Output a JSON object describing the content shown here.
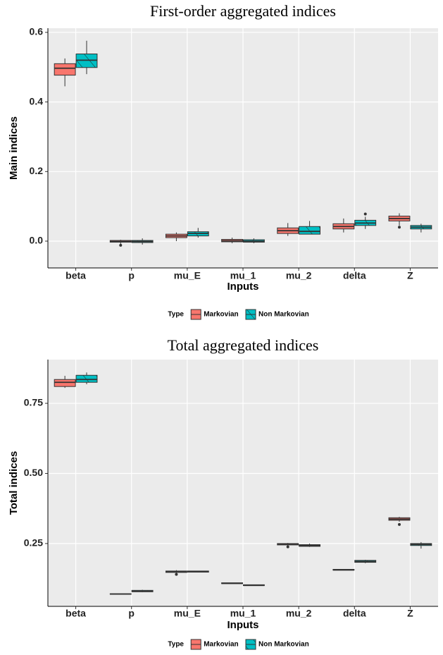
{
  "chart_data": [
    {
      "type": "boxplot",
      "title": "First-order aggregated indices",
      "x_label": "Inputs",
      "y_label": "Main indices",
      "legend_title": "Type",
      "legend": "bottom",
      "grid": true,
      "categories": [
        "beta",
        "p",
        "mu_E",
        "mu_1",
        "mu_2",
        "delta",
        "Z"
      ],
      "ylim": [
        -0.077,
        0.612
      ],
      "yticks": [
        {
          "value": 0,
          "label": "0.0"
        },
        0.2,
        0.4,
        0.6
      ],
      "series": [
        {
          "name": "Markovian",
          "color": "#F8766D",
          "hatch": false,
          "values": [
            {
              "low": 0.445,
              "q1": 0.477,
              "median": 0.497,
              "q3": 0.51,
              "high": 0.525
            },
            {
              "low": -0.008,
              "q1": -0.003,
              "median": -0.001,
              "q3": 0.002,
              "high": 0.004,
              "outliers": [
                -0.012
              ]
            },
            {
              "low": 0.0,
              "q1": 0.01,
              "median": 0.015,
              "q3": 0.02,
              "high": 0.025
            },
            {
              "low": -0.006,
              "q1": -0.002,
              "median": 0.001,
              "q3": 0.005,
              "high": 0.01
            },
            {
              "low": 0.015,
              "q1": 0.022,
              "median": 0.03,
              "q3": 0.038,
              "high": 0.052
            },
            {
              "low": 0.025,
              "q1": 0.035,
              "median": 0.042,
              "q3": 0.05,
              "high": 0.065
            },
            {
              "low": 0.045,
              "q1": 0.058,
              "median": 0.065,
              "q3": 0.072,
              "high": 0.08,
              "outliers": [
                0.04
              ]
            }
          ]
        },
        {
          "name": "Non Markovian",
          "color": "#00BFC4",
          "hatch": true,
          "values": [
            {
              "low": 0.48,
              "q1": 0.499,
              "median": 0.52,
              "q3": 0.538,
              "high": 0.576
            },
            {
              "low": -0.01,
              "q1": -0.004,
              "median": -0.001,
              "q3": 0.002,
              "high": 0.008
            },
            {
              "low": 0.01,
              "q1": 0.015,
              "median": 0.022,
              "q3": 0.027,
              "high": 0.038
            },
            {
              "low": -0.006,
              "q1": -0.003,
              "median": 0.0,
              "q3": 0.004,
              "high": 0.008
            },
            {
              "low": 0.02,
              "q1": 0.02,
              "median": 0.028,
              "q3": 0.042,
              "high": 0.058
            },
            {
              "low": 0.035,
              "q1": 0.045,
              "median": 0.052,
              "q3": 0.06,
              "high": 0.07,
              "outliers": [
                0.078
              ]
            },
            {
              "low": 0.025,
              "q1": 0.035,
              "median": 0.04,
              "q3": 0.045,
              "high": 0.05
            }
          ]
        }
      ]
    },
    {
      "type": "boxplot",
      "title": "Total aggregated indices",
      "x_label": "Inputs",
      "y_label": "Total indices",
      "legend_title": "Type",
      "legend": "bottom",
      "grid": true,
      "categories": [
        "beta",
        "p",
        "mu_E",
        "mu_1",
        "mu_2",
        "delta",
        "Z"
      ],
      "ylim": [
        0.026,
        0.906
      ],
      "yticks": [
        0.25,
        {
          "value": 0.5,
          "label": "0.50"
        },
        0.75
      ],
      "series": [
        {
          "name": "Markovian",
          "color": "#F8766D",
          "hatch": false,
          "values": [
            {
              "low": 0.805,
              "q1": 0.81,
              "median": 0.825,
              "q3": 0.835,
              "high": 0.848
            },
            {
              "low": 0.069,
              "q1": 0.069,
              "median": 0.07,
              "q3": 0.071,
              "high": 0.071
            },
            {
              "low": 0.145,
              "q1": 0.147,
              "median": 0.15,
              "q3": 0.152,
              "high": 0.155,
              "outliers": [
                0.14
              ]
            },
            {
              "low": 0.107,
              "q1": 0.107,
              "median": 0.108,
              "q3": 0.11,
              "high": 0.11
            },
            {
              "low": 0.242,
              "q1": 0.245,
              "median": 0.247,
              "q3": 0.25,
              "high": 0.252,
              "outliers": [
                0.238
              ]
            },
            {
              "low": 0.155,
              "q1": 0.155,
              "median": 0.156,
              "q3": 0.158,
              "high": 0.158
            },
            {
              "low": 0.328,
              "q1": 0.333,
              "median": 0.337,
              "q3": 0.342,
              "high": 0.345,
              "outliers": [
                0.318
              ]
            }
          ]
        },
        {
          "name": "Non Markovian",
          "color": "#00BFC4",
          "hatch": true,
          "values": [
            {
              "low": 0.818,
              "q1": 0.825,
              "median": 0.835,
              "q3": 0.85,
              "high": 0.86
            },
            {
              "low": 0.077,
              "q1": 0.078,
              "median": 0.08,
              "q3": 0.083,
              "high": 0.085
            },
            {
              "low": 0.147,
              "q1": 0.148,
              "median": 0.15,
              "q3": 0.152,
              "high": 0.153
            },
            {
              "low": 0.1,
              "q1": 0.1,
              "median": 0.101,
              "q3": 0.103,
              "high": 0.103
            },
            {
              "low": 0.238,
              "q1": 0.24,
              "median": 0.243,
              "q3": 0.246,
              "high": 0.25
            },
            {
              "low": 0.18,
              "q1": 0.183,
              "median": 0.186,
              "q3": 0.19,
              "high": 0.192
            },
            {
              "low": 0.232,
              "q1": 0.243,
              "median": 0.247,
              "q3": 0.25,
              "high": 0.255
            }
          ]
        }
      ]
    }
  ]
}
